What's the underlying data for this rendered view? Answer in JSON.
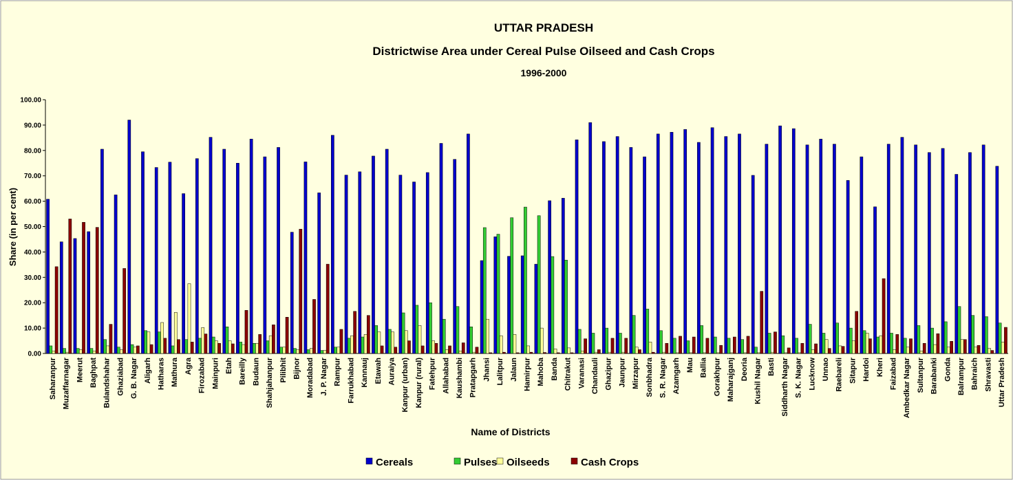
{
  "chart_data": {
    "type": "bar",
    "title": "UTTAR PRADESH",
    "subtitle": "Districtwise Area under Cereal Pulse Oilseed and Cash Crops",
    "period": "1996-2000",
    "x_label": "Name of Districts",
    "y_label": "Share (in per cent)",
    "categories": [
      "Saharanpur",
      "Muzaffarnagar",
      "Meerut",
      "Baghpat",
      "Bulandshahar",
      "Ghaziabad",
      "G. B. Nagar",
      "Aligarh",
      "Hatharas",
      "Mathura",
      "Agra",
      "Firozabad",
      "Mainpuri",
      "Etah",
      "Bareilly",
      "Budaun",
      "Shahjahanpur",
      "Pilibhit",
      "Bijnor",
      "Moradabad",
      "J. P. Nagar",
      "Rampur",
      "Farrukhabad",
      "Kannauj",
      "Etawah",
      "Auraiya",
      "Kanpur (urban)",
      "Kanpur (rural)",
      "Fatehpur",
      "Allahabad",
      "Kaushambi",
      "Pratapgarh",
      "Jhansi",
      "Lalitpur",
      "Jalaun",
      "Hamirpur",
      "Mahoba",
      "Banda",
      "Chitrakut",
      "Varanasi",
      "Chandauli",
      "Ghazipur",
      "Jaunpur",
      "Mirzapur",
      "Sonbhadra",
      "S. R. Nagar",
      "Azamgarh",
      "Mau",
      "Ballia",
      "Gorakhpur",
      "Maharajganj",
      "Deoria",
      "Kushil Nagar",
      "Basti",
      "Siddharth Nagar",
      "S. K. Nagar",
      "Lucknow",
      "Unnao",
      "Raebareli",
      "Sitapur",
      "Hardoi",
      "Kheri",
      "Faizabad",
      "Ambedkar Nagar",
      "Sultanpur",
      "Barabanki",
      "Gonda",
      "Balrampur",
      "Bahraich",
      "Shravasti",
      "Uttar Pradesh"
    ],
    "series": [
      {
        "name": "Cereals",
        "color": "#0000cc",
        "values": [
          60.8,
          44,
          45.3,
          48,
          80.5,
          62.5,
          92,
          79.5,
          73.3,
          75.4,
          63,
          76.8,
          85.2,
          80.5,
          75,
          84.5,
          77.5,
          81.2,
          47.8,
          75.5,
          63.3,
          86,
          70.3,
          71.6,
          77.8,
          80.5,
          70.3,
          67.6,
          71.3,
          82.8,
          76.5,
          86.5,
          36.6,
          46,
          38.3,
          38.5,
          35.2,
          60.2,
          61.2,
          84.2,
          91,
          83.5,
          85.5,
          81.2,
          77.5,
          86.5,
          87.2,
          88.3,
          83.2,
          89,
          85.5,
          86.5,
          70.2,
          82.5,
          89.7,
          88.6,
          82.2,
          84.5,
          82.5,
          68.2,
          77.5,
          57.8,
          82.5,
          85.2,
          82.2,
          79.2,
          80.8,
          70.6,
          79.2,
          82.2,
          73.8
        ]
      },
      {
        "name": "Pulses",
        "color": "#33cc33",
        "values": [
          3,
          2,
          2,
          2,
          5.5,
          2.5,
          3.5,
          9,
          8.5,
          3,
          5.5,
          6,
          6.5,
          10.5,
          4.5,
          4,
          5,
          2.5,
          2,
          1.5,
          1.2,
          2.5,
          6,
          6.5,
          11,
          9.5,
          16,
          19,
          20,
          13.5,
          18.5,
          10.5,
          49.6,
          47,
          53.5,
          57.7,
          54.3,
          38.2,
          36.8,
          9.5,
          8,
          10,
          8,
          15,
          17.5,
          9,
          6,
          5,
          11,
          6.5,
          6,
          5.5,
          2.5,
          8,
          7,
          6,
          11.5,
          8,
          12,
          10,
          9,
          6.5,
          8,
          6,
          11,
          10,
          12.5,
          18.5,
          15,
          14.5,
          12
        ]
      },
      {
        "name": "Oilseeds",
        "color": "#ffff99",
        "values": [
          1,
          0.5,
          1.5,
          1,
          3,
          1.5,
          2.5,
          8.5,
          12.2,
          16.2,
          27.5,
          10.2,
          5,
          5,
          3.5,
          4,
          7,
          2.5,
          1.5,
          2,
          1.2,
          2.5,
          7,
          7.5,
          8.5,
          8.5,
          9,
          11,
          5,
          1.5,
          1,
          0.5,
          13.5,
          7,
          7.5,
          3,
          10,
          1.8,
          2.2,
          1,
          0.5,
          0.5,
          0.5,
          2.5,
          4.5,
          0.5,
          0.3,
          0.3,
          0.3,
          0.3,
          0.3,
          0.3,
          0.3,
          0.5,
          0.3,
          0.3,
          1.5,
          5.5,
          3,
          5,
          8,
          7,
          1.5,
          2.5,
          1,
          3.5,
          2.5,
          5.5,
          2.5,
          2,
          4.5
        ]
      },
      {
        "name": "Cash Crops",
        "color": "#8b0000",
        "values": [
          34.2,
          53,
          51.7,
          49.7,
          11.5,
          33.5,
          3,
          3.5,
          6,
          5.5,
          4.5,
          7.7,
          4,
          3.8,
          17,
          7.5,
          11.3,
          14.3,
          49,
          21.3,
          35.2,
          9.5,
          16.6,
          15,
          3,
          2.5,
          5,
          3,
          4,
          3,
          4.2,
          2.5,
          0.3,
          0.5,
          0.3,
          0.5,
          0.4,
          0.3,
          0.3,
          5.8,
          1.5,
          6,
          6,
          1.5,
          0.5,
          4,
          6.8,
          6.5,
          6,
          3.2,
          6.5,
          6.8,
          24.5,
          8.5,
          2.2,
          4,
          3.8,
          2,
          2.8,
          16.6,
          5.8,
          29.5,
          7.5,
          5.8,
          4,
          7.8,
          4.8,
          5.5,
          3.2,
          1.2,
          10.3
        ]
      }
    ],
    "ylim": [
      0,
      100
    ],
    "yticks": [
      {
        "value": 0,
        "label": "0.00"
      },
      {
        "value": 10,
        "label": "10.00"
      },
      {
        "value": 20,
        "label": "20.00"
      },
      {
        "value": 30,
        "label": "30.00"
      },
      {
        "value": 40,
        "label": "40.00"
      },
      {
        "value": 50,
        "label": "50.00"
      },
      {
        "value": 60,
        "label": "60.00"
      },
      {
        "value": 70,
        "label": "70.00"
      },
      {
        "value": 80,
        "label": "80.00"
      },
      {
        "value": 90,
        "label": "90.00"
      },
      {
        "value": 100,
        "label": "100.00"
      }
    ],
    "grid": false,
    "legend": "bottom"
  }
}
